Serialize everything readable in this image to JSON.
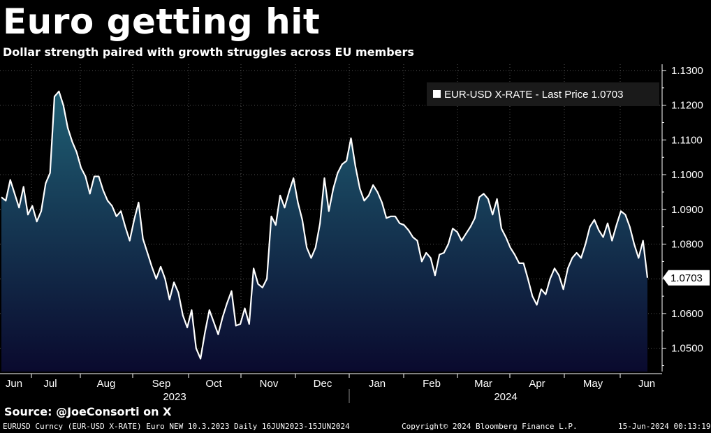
{
  "header": {
    "title": "Euro getting hit",
    "subtitle": "Dollar strength paired with growth struggles across EU members"
  },
  "source": "Source: @JoeConsorti on X",
  "footer": {
    "left": "EURUSD Curncy (EUR-USD X-RATE) Euro NEW 10.3.2023  Daily 16JUN2023-15JUN2024",
    "center": "Copyright© 2024 Bloomberg Finance L.P.",
    "right": "15-Jun-2024 00:13:19"
  },
  "colors": {
    "background": "#000000",
    "line": "#ffffff",
    "fill_top": "#1f5f73",
    "fill_bottom": "#0a0a2e",
    "grid": "#555555"
  },
  "chart_data": {
    "type": "area",
    "series": [
      {
        "name": "EUR-USD X-RATE - Last Price 1.0703",
        "values": [
          1.0935,
          1.0925,
          1.0985,
          1.0945,
          1.0905,
          1.0965,
          1.0885,
          1.091,
          1.0865,
          1.0895,
          1.0975,
          1.1005,
          1.1225,
          1.124,
          1.12,
          1.1135,
          1.1095,
          1.1065,
          1.102,
          1.0995,
          1.0945,
          1.0995,
          1.0995,
          1.0955,
          1.0925,
          1.091,
          1.088,
          1.0895,
          1.085,
          1.081,
          1.087,
          1.092,
          1.0815,
          1.0775,
          1.0735,
          1.07,
          1.0735,
          1.07,
          1.064,
          1.069,
          1.066,
          1.0595,
          1.056,
          1.061,
          1.05,
          1.047,
          1.0545,
          1.061,
          1.0575,
          1.054,
          1.059,
          1.063,
          1.0665,
          1.0565,
          1.057,
          1.0615,
          1.057,
          1.073,
          1.0685,
          1.0675,
          1.07,
          1.088,
          1.0855,
          1.094,
          1.0905,
          1.095,
          1.099,
          1.092,
          1.087,
          1.079,
          1.076,
          1.079,
          1.086,
          1.099,
          1.0895,
          1.096,
          1.1005,
          1.103,
          1.104,
          1.1105,
          1.1025,
          1.096,
          1.0925,
          1.094,
          1.097,
          1.095,
          1.092,
          1.0875,
          1.088,
          1.088,
          1.086,
          1.0855,
          1.084,
          1.082,
          1.081,
          1.075,
          1.0775,
          1.076,
          1.071,
          1.077,
          1.0775,
          1.08,
          1.0845,
          1.0835,
          1.081,
          1.083,
          1.085,
          1.0875,
          1.0935,
          1.0945,
          1.093,
          1.0885,
          1.093,
          1.0845,
          1.082,
          1.079,
          1.077,
          1.0745,
          1.0745,
          1.07,
          1.065,
          1.0625,
          1.067,
          1.0655,
          1.07,
          1.073,
          1.071,
          1.067,
          1.073,
          1.076,
          1.0775,
          1.076,
          1.08,
          1.085,
          1.087,
          1.084,
          1.082,
          1.086,
          1.081,
          1.0855,
          1.0895,
          1.0885,
          1.085,
          1.08,
          1.076,
          1.081,
          1.0703
        ]
      }
    ],
    "last_value_label": "1.0703",
    "x_month_labels": [
      "Jun",
      "Jul",
      "Aug",
      "Sep",
      "Oct",
      "Nov",
      "Dec",
      "Jan",
      "Feb",
      "Mar",
      "Apr",
      "May",
      "Jun"
    ],
    "x_year_labels": [
      "2023",
      "2024"
    ],
    "y_ticks": [
      1.05,
      1.06,
      1.07,
      1.08,
      1.09,
      1.1,
      1.11,
      1.12,
      1.13
    ],
    "y_tick_labels": [
      "1.0500",
      "1.0600",
      "1.0700",
      "1.0800",
      "1.0900",
      "1.1000",
      "1.1100",
      "1.1200",
      "1.1300"
    ],
    "ylim": [
      1.0433,
      1.1318
    ],
    "grid": true,
    "legend_position": "top-right"
  }
}
